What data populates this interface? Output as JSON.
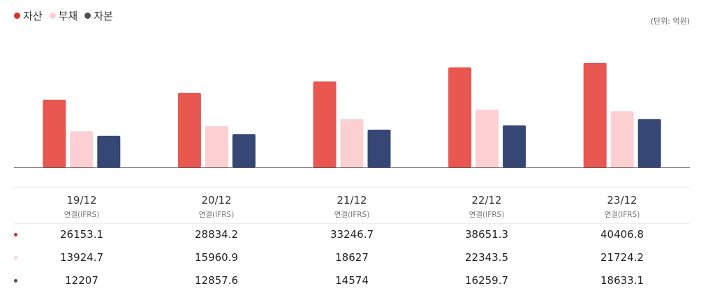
{
  "legend": [
    {
      "label": "자산",
      "color": "#d9302b"
    },
    {
      "label": "부채",
      "color": "#fccfd3"
    },
    {
      "label": "자본",
      "color": "#505050"
    }
  ],
  "unit_label": "(단위: 억원)",
  "bar_colors": [
    "#e85750",
    "#fccfd3",
    "#364776"
  ],
  "chart_data": {
    "type": "bar",
    "categories": [
      "19/12",
      "20/12",
      "21/12",
      "22/12",
      "23/12"
    ],
    "series": [
      {
        "name": "자산",
        "values": [
          26153.1,
          28834.2,
          33246.7,
          38651.3,
          40406.8
        ]
      },
      {
        "name": "부채",
        "values": [
          13924.7,
          15960.9,
          18627,
          22343.5,
          21724.2
        ]
      },
      {
        "name": "자본",
        "values": [
          12207,
          12857.6,
          14574,
          16259.7,
          18633.1
        ]
      }
    ],
    "ylim": [
      0,
      40406.8
    ],
    "grid": false,
    "legend": "top-left"
  },
  "table": {
    "periods": [
      {
        "label": "19/12",
        "basis": "연결(IFRS)"
      },
      {
        "label": "20/12",
        "basis": "연결(IFRS)"
      },
      {
        "label": "21/12",
        "basis": "연결(IFRS)"
      },
      {
        "label": "22/12",
        "basis": "연결(IFRS)"
      },
      {
        "label": "23/12",
        "basis": "연결(IFRS)"
      }
    ],
    "rows": [
      {
        "dot_color": "#d9302b",
        "values": [
          "26153.1",
          "28834.2",
          "33246.7",
          "38651.3",
          "40406.8"
        ]
      },
      {
        "dot_color": "#fccfd3",
        "values": [
          "13924.7",
          "15960.9",
          "18627",
          "22343.5",
          "21724.2"
        ]
      },
      {
        "dot_color": "#505050",
        "values": [
          "12207",
          "12857.6",
          "14574",
          "16259.7",
          "18633.1"
        ]
      }
    ]
  }
}
